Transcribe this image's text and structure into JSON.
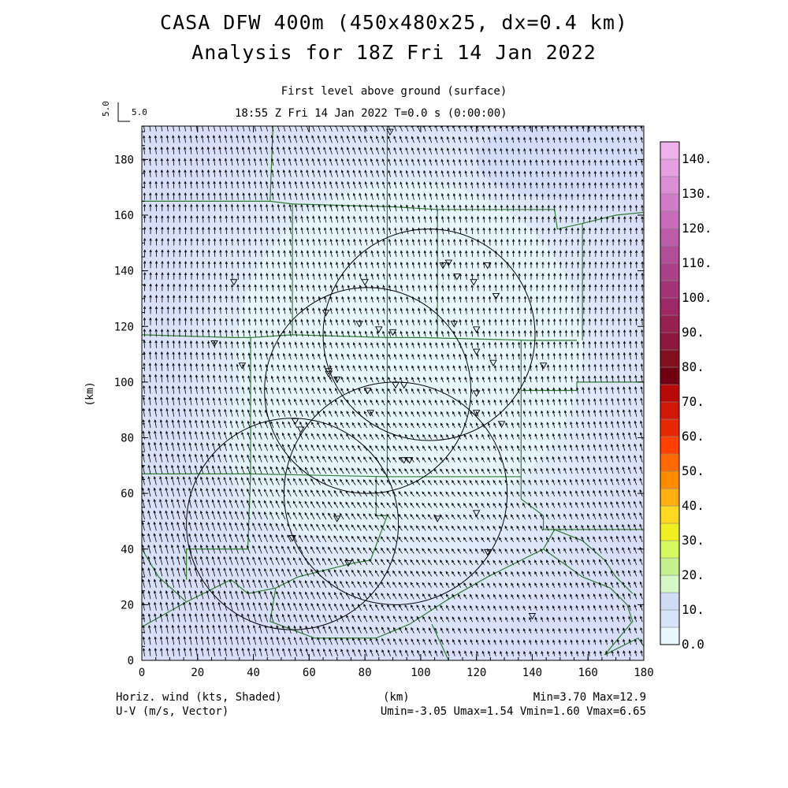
{
  "title_line1": "CASA DFW 400m (450x480x25, dx=0.4 km)",
  "title_line2": "Analysis for 18Z Fri 14 Jan 2022",
  "subtitle_level": "First level above ground (surface)",
  "subtitle_time": "18:55 Z Fri 14 Jan 2022    T=0.0 s (0:00:00)",
  "vector_scale": {
    "h_label": "5.0",
    "v_label": "5.0"
  },
  "footer": {
    "field1": "Horiz. wind (kts, Shaded)",
    "field2": "U-V (m/s, Vector)",
    "xunit": "(km)",
    "minmax": "Min=3.70 Max=12.9",
    "uv_range": "Umin=-3.05 Umax=1.54 Vmin=1.60 Vmax=6.65"
  },
  "colors": {
    "background_field": "#dce4fa",
    "field_light": "#e6f6fb",
    "county_lines": "#2e7d32",
    "range_rings": "#000000"
  },
  "chart_data": {
    "type": "heatmap",
    "xlabel": "",
    "ylabel": "(km)",
    "xlim": [
      0,
      180
    ],
    "ylim": [
      0,
      192
    ],
    "x_ticks": [
      0,
      20,
      40,
      60,
      80,
      100,
      120,
      140,
      160,
      180
    ],
    "y_ticks": [
      0,
      20,
      40,
      60,
      80,
      100,
      120,
      140,
      160,
      180
    ],
    "colorbar": {
      "min": 0,
      "max": 145,
      "step": 5,
      "labels": [
        "0.0",
        "10.",
        "20.",
        "30.",
        "40.",
        "50.",
        "60.",
        "70.",
        "80.",
        "90.",
        "100.",
        "110.",
        "120.",
        "130.",
        "140."
      ],
      "colors": [
        "#e8f8fc",
        "#d8e2f8",
        "#d0dcf6",
        "#d6f8c8",
        "#c4f090",
        "#d6f860",
        "#f0f020",
        "#ffd820",
        "#ffb010",
        "#ff8c00",
        "#ff6a00",
        "#ff4000",
        "#e82800",
        "#d01808",
        "#b80808",
        "#700010",
        "#801020",
        "#8c1840",
        "#962050",
        "#9c2866",
        "#a43478",
        "#aa4086",
        "#b24e98",
        "#bc5ca8",
        "#c66cb8",
        "#d07cc6",
        "#da8ed4",
        "#e4a0e0",
        "#eeb2ea"
      ]
    },
    "range_rings": [
      {
        "cx": 103,
        "cy": 117,
        "r": 38
      },
      {
        "cx": 81,
        "cy": 97,
        "r": 37
      },
      {
        "cx": 54,
        "cy": 49,
        "r": 38
      },
      {
        "cx": 91,
        "cy": 60,
        "r": 40
      }
    ],
    "radars": [
      [
        89,
        190
      ],
      [
        26,
        114
      ],
      [
        33,
        136
      ],
      [
        36,
        106
      ],
      [
        66,
        125
      ],
      [
        80,
        136
      ],
      [
        78,
        121
      ],
      [
        85,
        119
      ],
      [
        90,
        118
      ],
      [
        67,
        104
      ],
      [
        67,
        103
      ],
      [
        70,
        101
      ],
      [
        108,
        142
      ],
      [
        110,
        143
      ],
      [
        113,
        138
      ],
      [
        124,
        142
      ],
      [
        119,
        136
      ],
      [
        127,
        131
      ],
      [
        112,
        121
      ],
      [
        120,
        119
      ],
      [
        120,
        111
      ],
      [
        126,
        107
      ],
      [
        144,
        106
      ],
      [
        81,
        97
      ],
      [
        91,
        99
      ],
      [
        94,
        99
      ],
      [
        120,
        96
      ],
      [
        82,
        89
      ],
      [
        120,
        89
      ],
      [
        129,
        85
      ],
      [
        55,
        86
      ],
      [
        57,
        83
      ],
      [
        94,
        72
      ],
      [
        96,
        72
      ],
      [
        70,
        51
      ],
      [
        106,
        51
      ],
      [
        120,
        53
      ],
      [
        54,
        44
      ],
      [
        124,
        39
      ],
      [
        74,
        35
      ],
      [
        140,
        16
      ]
    ],
    "counties": [
      [
        [
          0,
          165
        ],
        [
          46,
          165
        ],
        [
          54,
          164
        ],
        [
          90,
          163
        ],
        [
          106,
          162
        ],
        [
          148,
          162
        ],
        [
          149,
          155
        ],
        [
          158,
          157
        ],
        [
          170,
          160
        ],
        [
          180,
          161
        ]
      ],
      [
        [
          47,
          192
        ],
        [
          46,
          165
        ]
      ],
      [
        [
          0,
          117
        ],
        [
          33,
          116
        ],
        [
          39,
          116
        ],
        [
          54,
          117
        ],
        [
          88,
          116
        ],
        [
          100,
          116
        ],
        [
          139,
          115
        ],
        [
          156,
          115
        ]
      ],
      [
        [
          54,
          164
        ],
        [
          54,
          117
        ]
      ],
      [
        [
          88,
          116
        ],
        [
          88,
          192
        ]
      ],
      [
        [
          106,
          162
        ],
        [
          106,
          116
        ]
      ],
      [
        [
          158,
          157
        ],
        [
          158,
          115
        ]
      ],
      [
        [
          39,
          116
        ],
        [
          39,
          67
        ]
      ],
      [
        [
          88,
          116
        ],
        [
          88,
          66
        ]
      ],
      [
        [
          0,
          67
        ],
        [
          39,
          67
        ],
        [
          88,
          66
        ],
        [
          136,
          66
        ]
      ],
      [
        [
          136,
          115
        ],
        [
          136,
          66
        ]
      ],
      [
        [
          136,
          97
        ],
        [
          156,
          97
        ],
        [
          156,
          100
        ],
        [
          180,
          100
        ]
      ],
      [
        [
          136,
          66
        ],
        [
          136,
          58
        ],
        [
          144,
          52
        ],
        [
          144,
          47
        ],
        [
          180,
          47
        ]
      ],
      [
        [
          39,
          67
        ],
        [
          38,
          40
        ],
        [
          16,
          40
        ],
        [
          16,
          29
        ]
      ],
      [
        [
          0,
          12
        ],
        [
          16,
          21
        ],
        [
          32,
          29
        ],
        [
          38,
          24
        ],
        [
          48,
          26
        ],
        [
          56,
          30
        ],
        [
          76,
          35
        ],
        [
          82,
          36
        ]
      ],
      [
        [
          82,
          36
        ],
        [
          88,
          52
        ],
        [
          84,
          52
        ],
        [
          84,
          66
        ]
      ],
      [
        [
          0,
          40
        ],
        [
          6,
          30
        ],
        [
          16,
          21
        ]
      ],
      [
        [
          48,
          26
        ],
        [
          46,
          14
        ],
        [
          62,
          8
        ],
        [
          84,
          8
        ],
        [
          96,
          13
        ],
        [
          110,
          22
        ],
        [
          124,
          30
        ],
        [
          144,
          40
        ],
        [
          148,
          47
        ]
      ],
      [
        [
          104,
          13
        ],
        [
          110,
          0
        ]
      ],
      [
        [
          144,
          40
        ],
        [
          158,
          30
        ],
        [
          168,
          26
        ],
        [
          174,
          20
        ],
        [
          176,
          14
        ],
        [
          166,
          2
        ],
        [
          178,
          8
        ],
        [
          180,
          5
        ]
      ],
      [
        [
          148,
          47
        ],
        [
          158,
          43
        ],
        [
          166,
          36
        ],
        [
          170,
          30
        ],
        [
          176,
          24
        ]
      ]
    ]
  }
}
